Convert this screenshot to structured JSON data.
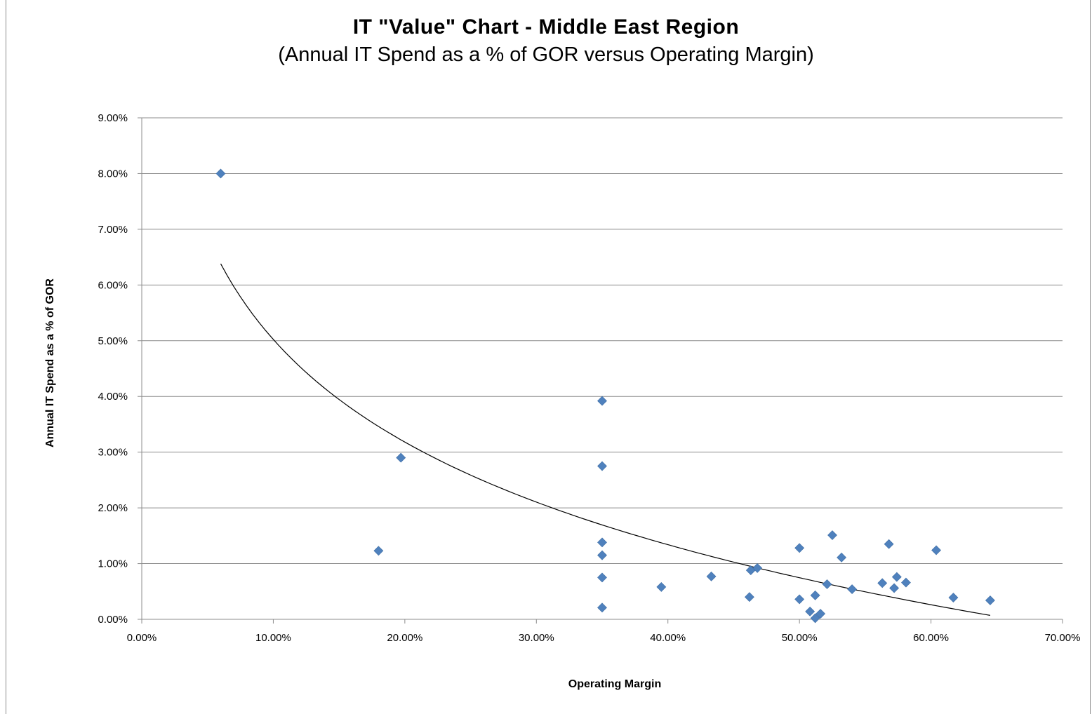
{
  "chart_data": {
    "type": "scatter",
    "title": "IT \"Value\" Chart - Middle East Region",
    "subtitle": "(Annual IT Spend as a % of GOR versus Operating Margin)",
    "xlabel": "Operating Margin",
    "ylabel": "Annual IT Spend as a % of GOR",
    "xlim": [
      0,
      70
    ],
    "ylim": [
      0,
      9
    ],
    "x_ticks": [
      "0.00%",
      "10.00%",
      "20.00%",
      "30.00%",
      "40.00%",
      "50.00%",
      "60.00%",
      "70.00%"
    ],
    "y_ticks": [
      "0.00%",
      "1.00%",
      "2.00%",
      "3.00%",
      "4.00%",
      "5.00%",
      "6.00%",
      "7.00%",
      "8.00%",
      "9.00%"
    ],
    "grid": "horizontal",
    "legend": "none",
    "marker_color": "#4f81bd",
    "trendline": {
      "type": "logarithmic",
      "color": "#000000",
      "x_range": [
        6,
        64.5
      ],
      "points": [
        [
          6,
          6.38
        ],
        [
          10,
          5.0
        ],
        [
          20,
          3.22
        ],
        [
          30,
          2.12
        ],
        [
          40,
          1.38
        ],
        [
          50,
          0.72
        ],
        [
          64.5,
          0.07
        ]
      ]
    },
    "series": [
      {
        "points": [
          [
            6.0,
            8.0
          ],
          [
            18.0,
            1.23
          ],
          [
            19.7,
            2.9
          ],
          [
            35.0,
            3.92
          ],
          [
            35.0,
            2.75
          ],
          [
            35.0,
            1.38
          ],
          [
            35.0,
            1.15
          ],
          [
            35.0,
            0.75
          ],
          [
            35.0,
            0.21
          ],
          [
            39.5,
            0.58
          ],
          [
            43.3,
            0.77
          ],
          [
            46.2,
            0.4
          ],
          [
            46.3,
            0.88
          ],
          [
            46.8,
            0.92
          ],
          [
            50.0,
            1.28
          ],
          [
            50.0,
            0.36
          ],
          [
            50.8,
            0.14
          ],
          [
            51.2,
            0.43
          ],
          [
            51.2,
            0.02
          ],
          [
            51.6,
            0.1
          ],
          [
            52.1,
            0.63
          ],
          [
            52.5,
            1.51
          ],
          [
            53.2,
            1.11
          ],
          [
            54.0,
            0.54
          ],
          [
            56.3,
            0.65
          ],
          [
            56.8,
            1.35
          ],
          [
            57.2,
            0.56
          ],
          [
            57.4,
            0.76
          ],
          [
            58.1,
            0.66
          ],
          [
            60.4,
            1.24
          ],
          [
            61.7,
            0.39
          ],
          [
            64.5,
            0.34
          ]
        ]
      }
    ]
  }
}
